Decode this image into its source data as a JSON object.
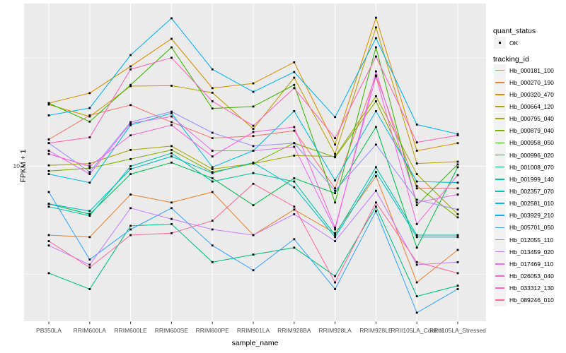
{
  "chart_data": {
    "type": "line",
    "title": "",
    "xlabel": "sample_name",
    "ylabel": "FPKM + 1",
    "y_scale": "log10",
    "ylim": [
      1.9,
      56
    ],
    "y_major_ticks": [
      10
    ],
    "y_major_tick_labels": [
      "10"
    ],
    "y_minor_gridlines": [
      31.6,
      3.16
    ],
    "grid": true,
    "legend_position": "right",
    "point_marker": "small-black-square",
    "categories": [
      "PB350LA",
      "RRIM600LA",
      "RRIM600LE",
      "RRIM600SE",
      "RRIM600PE",
      "RRIM901LA",
      "RRIM928BA",
      "RRIM928LA",
      "RRIM928LE",
      "RRII105LA_Control",
      "RRII105LA_Stressed"
    ],
    "series": [
      {
        "name": "Hb_000181_100",
        "color": "#F8766D",
        "values": [
          13.3,
          17.2,
          19.2,
          16.0,
          13.5,
          13.8,
          14.6,
          7.9,
          26.3,
          7.9,
          7.9
        ]
      },
      {
        "name": "Hb_000270_190",
        "color": "#EA8331",
        "values": [
          4.8,
          4.7,
          7.4,
          6.8,
          7.6,
          4.8,
          6.3,
          4.9,
          9.0,
          2.9,
          4.1
        ]
      },
      {
        "name": "Hb_000320_470",
        "color": "#D89000",
        "values": [
          19.6,
          21.8,
          29.0,
          38.9,
          23.0,
          24.2,
          30.3,
          12.6,
          48.7,
          11.8,
          12.8
        ]
      },
      {
        "name": "Hb_000664_120",
        "color": "#C09B00",
        "values": [
          19.3,
          17.0,
          23.5,
          23.6,
          21.9,
          14.9,
          25.7,
          11.4,
          43.9,
          10.3,
          10.5
        ]
      },
      {
        "name": "Hb_000795_040",
        "color": "#A3A500",
        "values": [
          10.1,
          10.3,
          11.9,
          12.4,
          9.7,
          10.3,
          11.2,
          11.1,
          21.1,
          9.2,
          6.0
        ]
      },
      {
        "name": "Hb_000879_040",
        "color": "#7CAE00",
        "values": [
          9.5,
          9.8,
          10.8,
          11.9,
          9.4,
          10.3,
          12.8,
          11.0,
          20.0,
          8.1,
          5.8
        ]
      },
      {
        "name": "Hb_000958_050",
        "color": "#39B600",
        "values": [
          19.6,
          16.1,
          23.8,
          35.5,
          18.5,
          18.9,
          23.8,
          6.8,
          35.5,
          6.6,
          10.2
        ]
      },
      {
        "name": "Hb_000996_020",
        "color": "#00BB4E",
        "values": [
          6.7,
          6.0,
          9.2,
          10.4,
          8.8,
          6.6,
          8.8,
          7.5,
          15.2,
          4.2,
          9.9
        ]
      },
      {
        "name": "Hb_001008_070",
        "color": "#00BF7D",
        "values": [
          3.2,
          2.7,
          5.3,
          5.4,
          3.6,
          3.9,
          4.2,
          3.1,
          6.5,
          2.5,
          2.8
        ]
      },
      {
        "name": "Hb_001999_140",
        "color": "#00C1A3",
        "values": [
          6.5,
          5.9,
          10.0,
          11.5,
          8.5,
          9.3,
          8.5,
          4.8,
          9.9,
          4.8,
          4.8
        ]
      },
      {
        "name": "Hb_002357_070",
        "color": "#00BFC4",
        "values": [
          6.7,
          6.2,
          9.7,
          11.1,
          9.3,
          10.4,
          8.0,
          4.7,
          9.4,
          4.7,
          4.7
        ]
      },
      {
        "name": "Hb_002581_010",
        "color": "#00BAE0",
        "values": [
          9.2,
          8.4,
          15.5,
          17.6,
          9.9,
          11.8,
          18.0,
          8.6,
          18.0,
          8.5,
          8.4
        ]
      },
      {
        "name": "Hb_003929_210",
        "color": "#00B0F6",
        "values": [
          17.2,
          18.6,
          32.7,
          48.4,
          28.1,
          22.1,
          27.3,
          16.9,
          39.2,
          15.6,
          14.1
        ]
      },
      {
        "name": "Hb_005701_050",
        "color": "#35A2FF",
        "values": [
          7.6,
          3.7,
          5.1,
          6.4,
          4.3,
          3.3,
          4.6,
          2.7,
          6.2,
          2.1,
          2.7
        ]
      },
      {
        "name": "Hb_012055_110",
        "color": "#9590FF",
        "values": [
          12.8,
          9.4,
          16.0,
          17.9,
          14.3,
          12.4,
          12.8,
          7.7,
          12.6,
          7.0,
          6.3
        ]
      },
      {
        "name": "Hb_013459_020",
        "color": "#C77CFF",
        "values": [
          4.3,
          3.5,
          6.4,
          5.7,
          5.1,
          4.8,
          6.0,
          4.5,
          7.7,
          3.5,
          3.6
        ]
      },
      {
        "name": "Hb_017469_110",
        "color": "#E76BF3",
        "values": [
          11.8,
          9.2,
          15.8,
          17.0,
          11.8,
          11.8,
          12.3,
          5.1,
          27.5,
          6.8,
          7.4
        ]
      },
      {
        "name": "Hb_026053_040",
        "color": "#FA62DB",
        "values": [
          11.4,
          10.0,
          13.9,
          15.5,
          11.1,
          14.4,
          15.2,
          5.2,
          26.1,
          5.4,
          9.1
        ]
      },
      {
        "name": "Hb_033312_130",
        "color": "#FF62BC",
        "values": [
          12.8,
          13.6,
          28.1,
          31.8,
          20.0,
          15.4,
          23.0,
          13.5,
          32.2,
          12.9,
          13.9
        ]
      },
      {
        "name": "Hb_089246_010",
        "color": "#FF6A98",
        "values": [
          4.5,
          3.4,
          4.8,
          4.9,
          5.6,
          8.3,
          6.5,
          2.9,
          6.8,
          3.6,
          3.2
        ]
      }
    ]
  },
  "axes": {
    "x_title": "sample_name",
    "y_title": "FPKM + 1",
    "y_tick_label": "10"
  },
  "legend": {
    "quant_status_title": "quant_status",
    "quant_status_items": [
      {
        "label": "OK",
        "marker": "black-square"
      }
    ],
    "tracking_id_title": "tracking_id"
  },
  "colors": {
    "panel_bg": "#EBEBEB",
    "gridline": "#FFFFFF",
    "point": "#000000",
    "axis_text": "#4D4D4D",
    "tick": "#333333",
    "legend_key_bg": "#F2F2F2"
  }
}
